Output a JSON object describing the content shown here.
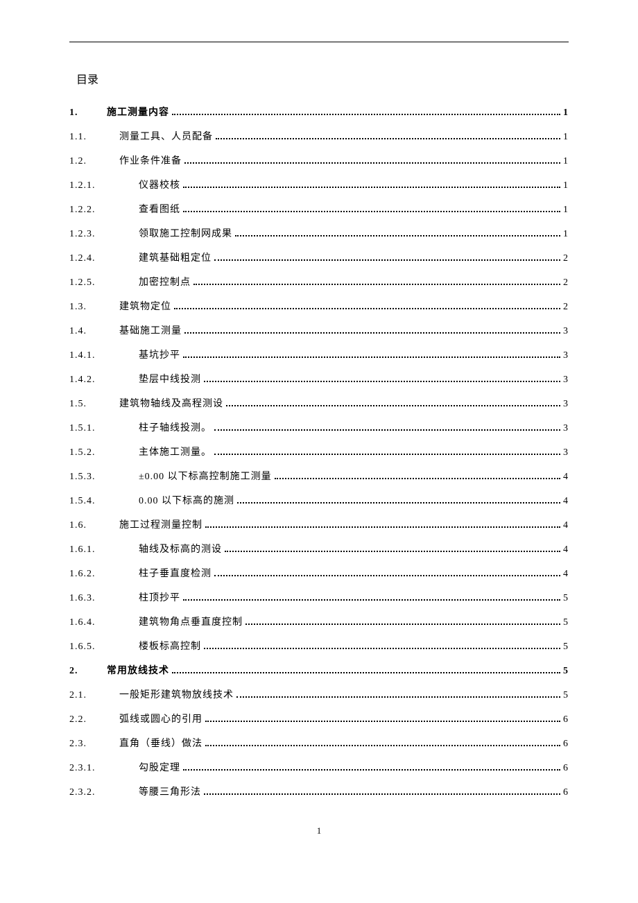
{
  "title": "目录",
  "page_number": "1",
  "colors": {
    "text": "#000000",
    "background": "#ffffff",
    "rule": "#000000"
  },
  "typography": {
    "font_family": "SimSun",
    "toc_title_size_pt": 16,
    "entry_size_pt": 14,
    "line_height": 2.5
  },
  "entries": [
    {
      "level": 1,
      "number": "1.",
      "text": "施工测量内容",
      "page": "1"
    },
    {
      "level": 2,
      "number": "1.1.",
      "text": "测量工具、人员配备",
      "page": "1"
    },
    {
      "level": 2,
      "number": "1.2.",
      "text": "作业条件准备",
      "page": "1"
    },
    {
      "level": 3,
      "number": "1.2.1.",
      "text": "仪器校核",
      "page": "1"
    },
    {
      "level": 3,
      "number": "1.2.2.",
      "text": "查看图纸",
      "page": "1"
    },
    {
      "level": 3,
      "number": "1.2.3.",
      "text": "领取施工控制网成果",
      "page": "1"
    },
    {
      "level": 3,
      "number": "1.2.4.",
      "text": "建筑基础粗定位",
      "page": "2"
    },
    {
      "level": 3,
      "number": "1.2.5.",
      "text": "加密控制点",
      "page": "2"
    },
    {
      "level": 2,
      "number": "1.3.",
      "text": "建筑物定位",
      "page": "2"
    },
    {
      "level": 2,
      "number": "1.4.",
      "text": "基础施工测量",
      "page": "3"
    },
    {
      "level": 3,
      "number": "1.4.1.",
      "text": "基坑抄平",
      "page": "3"
    },
    {
      "level": 3,
      "number": "1.4.2.",
      "text": "垫层中线投测",
      "page": "3"
    },
    {
      "level": 2,
      "number": "1.5.",
      "text": "建筑物轴线及高程测设",
      "page": "3"
    },
    {
      "level": 3,
      "number": "1.5.1.",
      "text": "柱子轴线投测。",
      "page": "3"
    },
    {
      "level": 3,
      "number": "1.5.2.",
      "text": "主体施工测量。",
      "page": "3"
    },
    {
      "level": 3,
      "number": "1.5.3.",
      "text": "±0.00 以下标高控制施工测量",
      "page": "4"
    },
    {
      "level": 3,
      "number": "1.5.4.",
      "text": "0.00 以下标高的施测",
      "page": "4"
    },
    {
      "level": 2,
      "number": "1.6.",
      "text": "施工过程测量控制",
      "page": "4"
    },
    {
      "level": 3,
      "number": "1.6.1.",
      "text": "轴线及标高的测设",
      "page": "4"
    },
    {
      "level": 3,
      "number": "1.6.2.",
      "text": "柱子垂直度检测",
      "page": "4"
    },
    {
      "level": 3,
      "number": "1.6.3.",
      "text": "柱顶抄平",
      "page": "5"
    },
    {
      "level": 3,
      "number": "1.6.4.",
      "text": "建筑物角点垂直度控制",
      "page": "5"
    },
    {
      "level": 3,
      "number": "1.6.5.",
      "text": "楼板标高控制",
      "page": "5"
    },
    {
      "level": 1,
      "number": "2.",
      "text": "常用放线技术",
      "page": "5"
    },
    {
      "level": 2,
      "number": "2.1.",
      "text": "一般矩形建筑物放线技术",
      "page": "5"
    },
    {
      "level": 2,
      "number": "2.2.",
      "text": "弧线或圆心的引用",
      "page": "6"
    },
    {
      "level": 2,
      "number": "2.3.",
      "text": "直角（垂线）做法",
      "page": "6"
    },
    {
      "level": 3,
      "number": "2.3.1.",
      "text": "勾股定理",
      "page": "6"
    },
    {
      "level": 3,
      "number": "2.3.2.",
      "text": "等腰三角形法",
      "page": "6"
    }
  ]
}
